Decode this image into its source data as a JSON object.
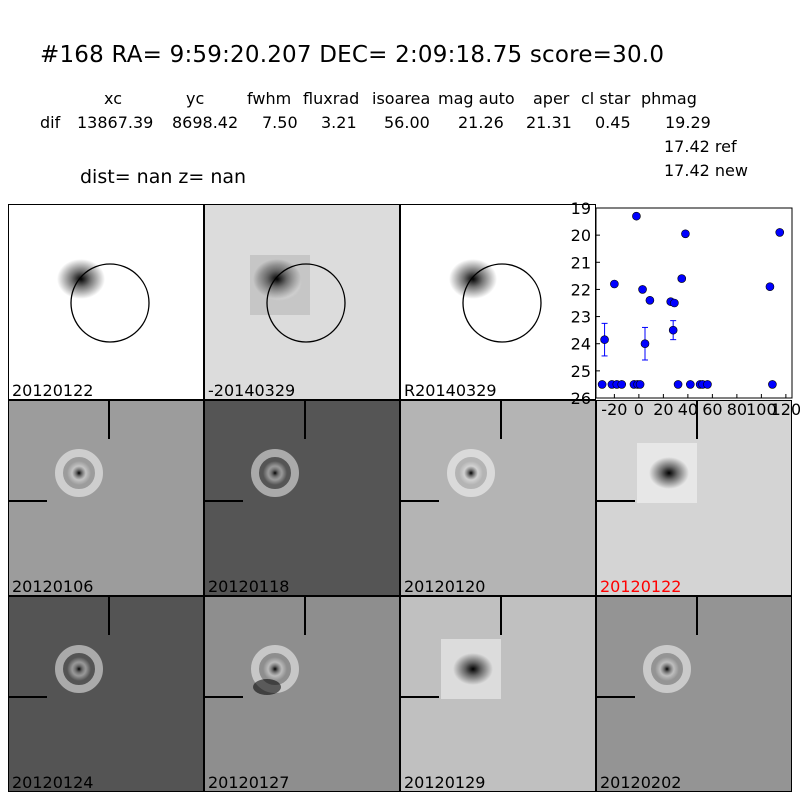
{
  "header": {
    "title": "#168   RA= 9:59:20.207 DEC= 2:09:18.75      score=30.0",
    "columns": [
      "xc",
      "yc",
      "fwhm",
      "fluxrad",
      "isoarea",
      "mag auto",
      "aper",
      "cl star",
      "phmag"
    ],
    "dif_row": {
      "label": "dif",
      "values": [
        "13867.39",
        "8698.42",
        "7.50",
        "3.21",
        "56.00",
        "21.26",
        "21.31",
        "0.45",
        "19.29"
      ]
    },
    "ref_line": "17.42 ref",
    "new_line": "17.42 new",
    "dist_text": "dist=   nan      z=   nan"
  },
  "panels": [
    {
      "label": "20120122",
      "bg": "#ffffff",
      "style": "circle-blob"
    },
    {
      "label": "-20140329",
      "bg": "#dcdcdc",
      "style": "circle-diff"
    },
    {
      "label": "R20140329",
      "bg": "#ffffff",
      "style": "circle-blob"
    },
    {
      "label": "20120106",
      "bg": "#9c9c9c",
      "style": "ring"
    },
    {
      "label": "20120118",
      "bg": "#555555",
      "style": "ring"
    },
    {
      "label": "20120120",
      "bg": "#b4b4b4",
      "style": "ring"
    },
    {
      "label": "20120122",
      "bg": "#d4d4d4",
      "style": "smudge",
      "label_color": "#ff0000"
    },
    {
      "label": "20120124",
      "bg": "#545454",
      "style": "ring"
    },
    {
      "label": "20120127",
      "bg": "#8e8e8e",
      "style": "ring-noisy"
    },
    {
      "label": "20120129",
      "bg": "#c0c0c0",
      "style": "smudge"
    },
    {
      "label": "20120202",
      "bg": "#949494",
      "style": "ring"
    }
  ],
  "chart_data": {
    "type": "scatter",
    "xlim": [
      -35,
      125
    ],
    "ylim": [
      26,
      19
    ],
    "x_ticks": [
      "-20",
      "0",
      "20",
      "40",
      "60",
      "80",
      "100",
      "120"
    ],
    "y_ticks": [
      "19",
      "20",
      "21",
      "22",
      "23",
      "24",
      "25",
      "26"
    ],
    "color": "#0000ff",
    "points": [
      {
        "x": -30,
        "y": 25.5
      },
      {
        "x": -28,
        "y": 23.85,
        "err": 0.6
      },
      {
        "x": -22,
        "y": 25.5
      },
      {
        "x": -20,
        "y": 21.8
      },
      {
        "x": -18,
        "y": 25.5
      },
      {
        "x": -14,
        "y": 25.5
      },
      {
        "x": -4,
        "y": 25.5
      },
      {
        "x": -2,
        "y": 19.3
      },
      {
        "x": -1,
        "y": 25.5
      },
      {
        "x": 1,
        "y": 25.5
      },
      {
        "x": 3,
        "y": 22.0
      },
      {
        "x": 5,
        "y": 24.0,
        "err": 0.6
      },
      {
        "x": 9,
        "y": 22.4
      },
      {
        "x": 26,
        "y": 22.45
      },
      {
        "x": 28,
        "y": 23.5,
        "err": 0.35
      },
      {
        "x": 29,
        "y": 22.5
      },
      {
        "x": 32,
        "y": 25.5
      },
      {
        "x": 35,
        "y": 21.6
      },
      {
        "x": 38,
        "y": 19.95
      },
      {
        "x": 42,
        "y": 25.5
      },
      {
        "x": 50,
        "y": 25.5
      },
      {
        "x": 52,
        "y": 25.5
      },
      {
        "x": 56,
        "y": 25.5
      },
      {
        "x": 107,
        "y": 21.9
      },
      {
        "x": 109,
        "y": 25.5
      },
      {
        "x": 115,
        "y": 19.9
      }
    ]
  }
}
